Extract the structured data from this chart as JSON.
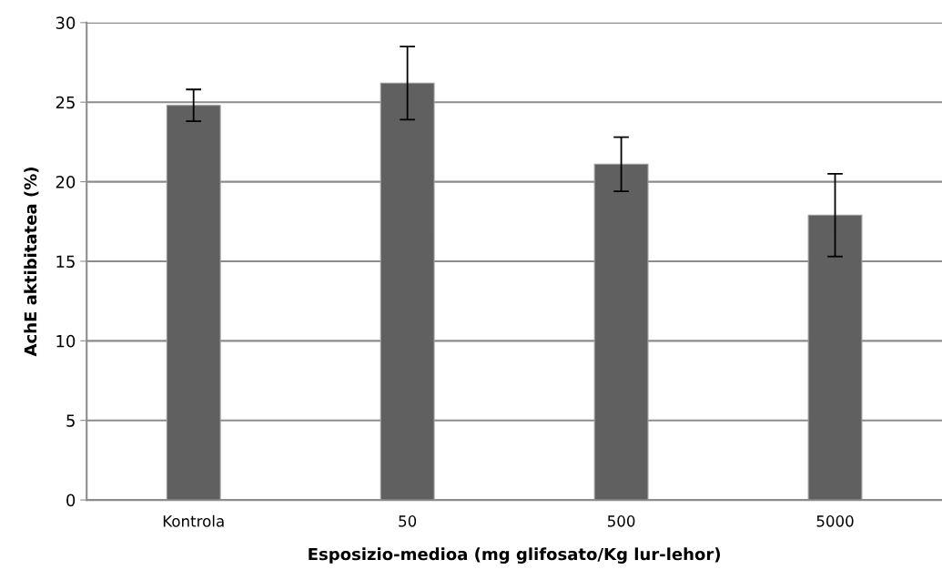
{
  "chart_data": {
    "type": "bar",
    "xlabel": "Esposizio-medioa (mg glifosato/Kg lur-lehor)",
    "ylabel": "AchE aktibitatea (%)",
    "categories": [
      "Kontrola",
      "50",
      "500",
      "5000"
    ],
    "values": [
      24.8,
      26.2,
      21.1,
      17.9
    ],
    "errors": [
      1.0,
      2.3,
      1.7,
      2.6
    ],
    "color": "#606060",
    "ylim": [
      0,
      30
    ],
    "yticks": [
      0,
      5,
      10,
      15,
      20,
      25,
      30
    ],
    "grid": "y"
  }
}
